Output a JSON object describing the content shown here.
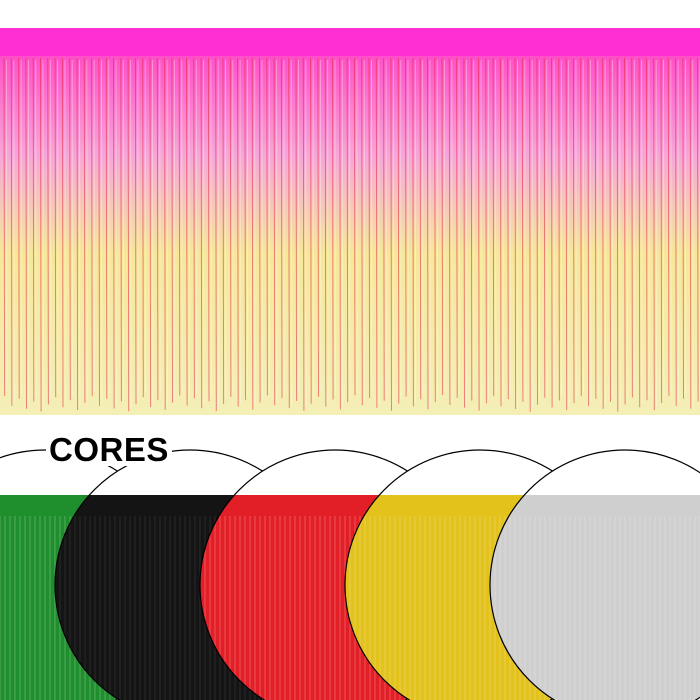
{
  "hero": {
    "header_color": "#ff2fd3",
    "fringe_colors": [
      "#ff4fc8",
      "#f7a6d8",
      "#f6e79a",
      "#f4efb6"
    ],
    "fringe_edge_color": "#e8263a"
  },
  "colors_section": {
    "label": "CORES",
    "swatches": [
      {
        "name": "green",
        "color": "#1f8f2e"
      },
      {
        "name": "black",
        "color": "#141414"
      },
      {
        "name": "red",
        "color": "#e21f26"
      },
      {
        "name": "gold",
        "color": "#e3c21c"
      },
      {
        "name": "silver",
        "color": "#cfcfcf"
      }
    ]
  }
}
